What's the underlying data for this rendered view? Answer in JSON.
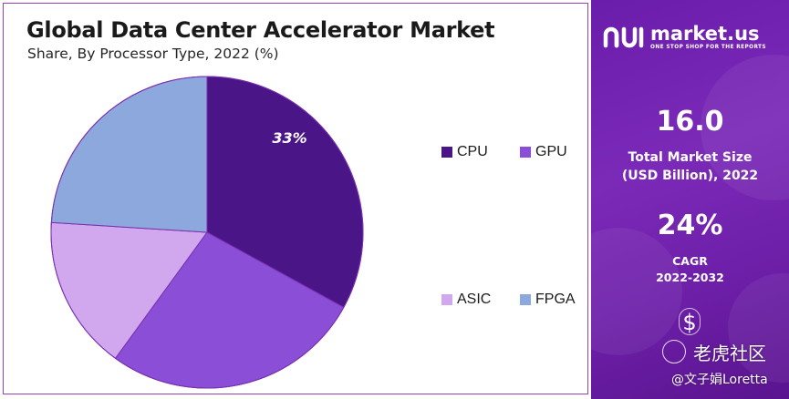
{
  "chart_data": {
    "type": "pie",
    "title": "Global Data Center Accelerator Market",
    "subtitle": "Share, By Processor Type, 2022 (%)",
    "categories": [
      "CPU",
      "GPU",
      "ASIC",
      "FPGA"
    ],
    "values": [
      33,
      27,
      16,
      24
    ],
    "colors": [
      "#4a1586",
      "#8a4fd6",
      "#d1a7ee",
      "#8da8dc"
    ],
    "data_labels": [
      {
        "category": "CPU",
        "text": "33%"
      }
    ],
    "legend_position": "right"
  },
  "brand": {
    "name": "market.us",
    "tagline": "ONE STOP SHOP FOR THE REPORTS"
  },
  "market_size": {
    "value": "16.0",
    "label_line1": "Total Market Size",
    "label_line2": "(USD Billion), 2022"
  },
  "cagr": {
    "value": "24%",
    "label_line1": "CAGR",
    "label_line2": "2022-2032"
  },
  "icons": {
    "dollar": "$"
  },
  "watermark": {
    "main": "老虎社区",
    "sub": "@文子娟Loretta"
  }
}
